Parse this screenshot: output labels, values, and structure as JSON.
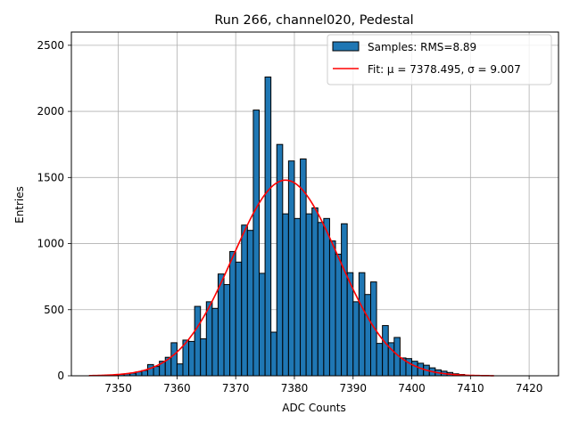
{
  "chart_data": {
    "type": "bar",
    "title": "Run 266, channel020, Pedestal",
    "xlabel": "ADC Counts",
    "ylabel": "Entries",
    "xlim": [
      7342,
      7425
    ],
    "ylim": [
      0,
      2600
    ],
    "xticks": [
      7350,
      7360,
      7370,
      7380,
      7390,
      7400,
      7410,
      7420
    ],
    "yticks": [
      0,
      500,
      1000,
      1500,
      2000,
      2500
    ],
    "grid": true,
    "legend_position": "top-right",
    "bin_width": 1,
    "histogram": {
      "name": "Samples: RMS=8.89",
      "color": "#1f77b4",
      "edge_color": "#000000",
      "bins": [
        7349,
        7350,
        7351,
        7352,
        7353,
        7354,
        7355,
        7356,
        7357,
        7358,
        7359,
        7360,
        7361,
        7362,
        7363,
        7364,
        7365,
        7366,
        7367,
        7368,
        7369,
        7370,
        7371,
        7372,
        7373,
        7374,
        7375,
        7376,
        7377,
        7378,
        7379,
        7380,
        7381,
        7382,
        7383,
        7384,
        7385,
        7386,
        7387,
        7388,
        7389,
        7390,
        7391,
        7392,
        7393,
        7394,
        7395,
        7396,
        7397,
        7398,
        7399,
        7400,
        7401,
        7402,
        7403,
        7404,
        7405,
        7406,
        7407,
        7408
      ],
      "counts": [
        5,
        10,
        15,
        20,
        30,
        40,
        85,
        70,
        110,
        140,
        250,
        90,
        270,
        260,
        525,
        280,
        560,
        510,
        770,
        690,
        940,
        860,
        1140,
        1100,
        2010,
        775,
        2260,
        330,
        1750,
        1225,
        1625,
        1190,
        1640,
        1225,
        1270,
        1160,
        1190,
        1020,
        920,
        1150,
        780,
        560,
        780,
        615,
        710,
        245,
        380,
        250,
        290,
        135,
        130,
        110,
        95,
        80,
        60,
        45,
        35,
        25,
        15,
        10
      ]
    },
    "fit": {
      "name": "Fit: μ = 7378.495, σ = 9.007",
      "color": "#ff0000",
      "mu": 7378.495,
      "sigma": 9.007,
      "amplitude": 1480,
      "x_range": [
        7345,
        7414
      ]
    }
  }
}
